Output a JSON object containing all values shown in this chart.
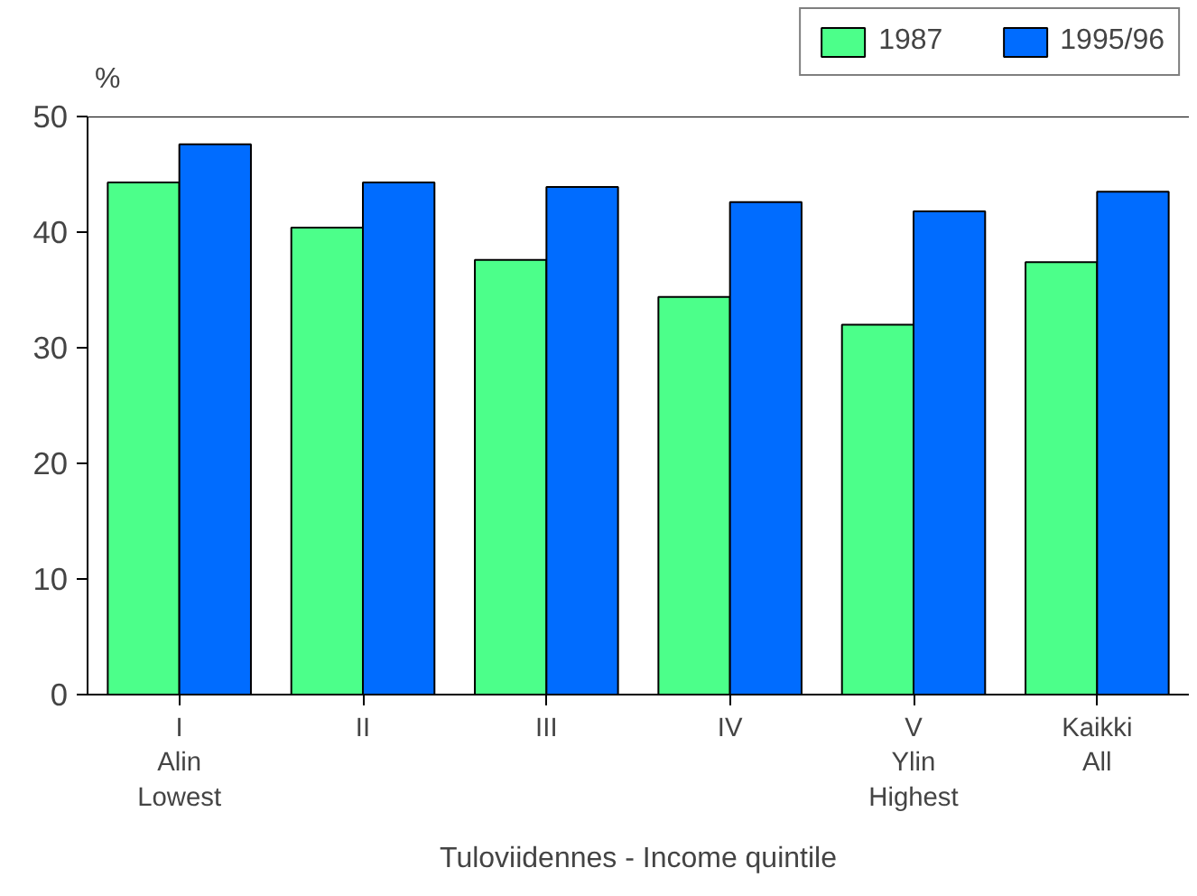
{
  "chart_data": {
    "type": "bar",
    "ylabel": "%",
    "xlabel": "Tuloviidennes - Income quintile",
    "categories": [
      "I\nAlin\nLowest",
      "II",
      "III",
      "IV",
      "V\nYlin\nHighest",
      "Kaikki\nAll"
    ],
    "series": [
      {
        "name": "1987",
        "color": "#4cff8a",
        "values": [
          44.3,
          40.4,
          37.6,
          34.4,
          32.0,
          37.4
        ]
      },
      {
        "name": "1995/96",
        "color": "#006cff",
        "values": [
          47.6,
          44.3,
          43.9,
          42.6,
          41.8,
          43.5
        ]
      }
    ],
    "ylim": [
      0,
      50
    ],
    "yticks": [
      0,
      10,
      20,
      30,
      40,
      50
    ],
    "grid": false,
    "legend": "top right"
  }
}
